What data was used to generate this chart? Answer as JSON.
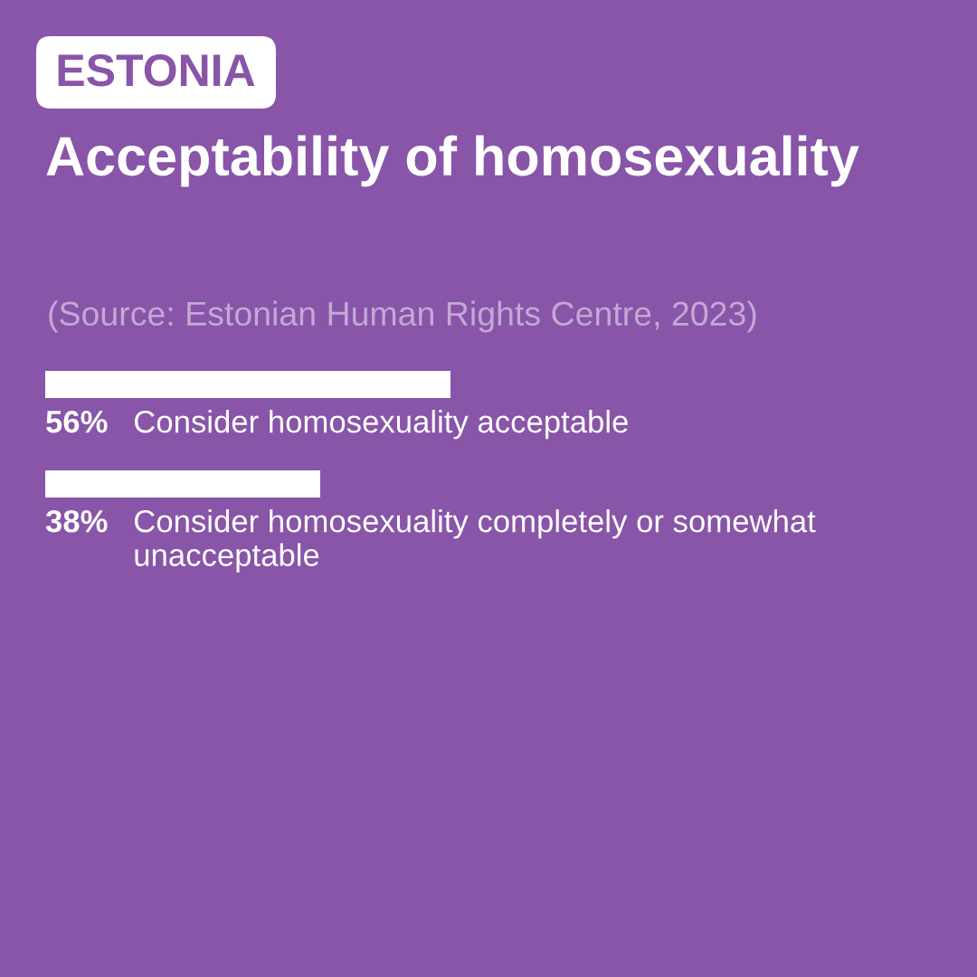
{
  "chart_data": {
    "type": "bar",
    "orientation": "horizontal",
    "subtitle": "ESTONIA",
    "title": "Acceptability of homosexuality",
    "annotations": [
      "(Source: Estonian Human Rights Centre, 2023)"
    ],
    "categories": [
      "Consider homosexuality acceptable",
      "Consider homosexuality completely or somewhat unacceptable"
    ],
    "values": [
      56,
      38
    ],
    "value_labels": [
      "56%",
      "38%"
    ],
    "color": "#ffffff",
    "legend": false
  }
}
